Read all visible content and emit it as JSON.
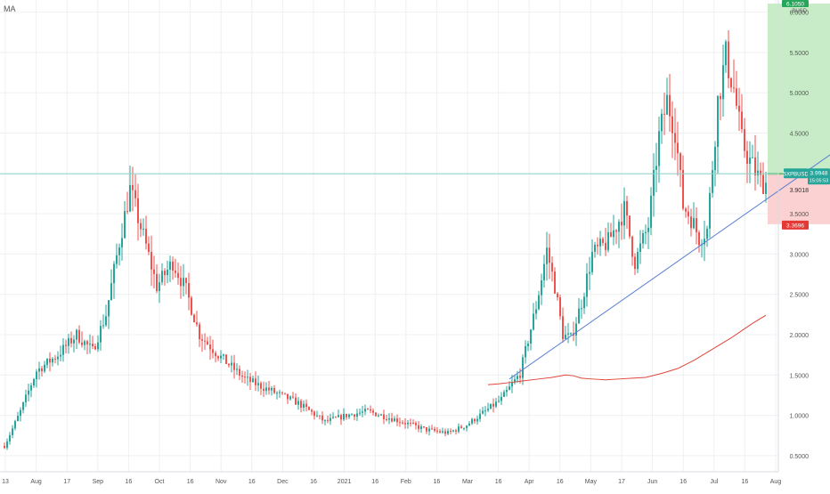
{
  "indicator_label": "MA",
  "chart_data": {
    "type": "candlestick",
    "symbol_label": "SXPBUSD",
    "last_price_label": "3.9948",
    "countdown_label": "15:05:53",
    "line_price_label": "3.9018",
    "stop_label": "3.3696",
    "target_label": "6.1050",
    "currency_label": "BUSD",
    "ylim": [
      0.3,
      6.15
    ],
    "y_ticks": [
      "0.5000",
      "1.0000",
      "1.5000",
      "2.0000",
      "2.5000",
      "3.0000",
      "3.5000",
      "4.0000",
      "4.5000",
      "5.0000",
      "5.5000",
      "6.0000"
    ],
    "x_ticks": [
      "13",
      "Aug",
      "17",
      "Sep",
      "16",
      "Oct",
      "16",
      "Nov",
      "16",
      "Dec",
      "16",
      "2021",
      "16",
      "Feb",
      "16",
      "Mar",
      "16",
      "Apr",
      "16",
      "May",
      "17",
      "Jun",
      "16",
      "Jul",
      "16",
      "Aug"
    ],
    "candle_count": 297,
    "price_path": [
      [
        0,
        0.62
      ],
      [
        6,
        1.05
      ],
      [
        12,
        1.55
      ],
      [
        20,
        1.75
      ],
      [
        27,
        2.0
      ],
      [
        33,
        1.8
      ],
      [
        38,
        2.25
      ],
      [
        43,
        3.15
      ],
      [
        47,
        3.8
      ],
      [
        53,
        3.1
      ],
      [
        57,
        2.6
      ],
      [
        63,
        2.9
      ],
      [
        68,
        2.55
      ],
      [
        73,
        2.0
      ],
      [
        80,
        1.75
      ],
      [
        90,
        1.45
      ],
      [
        100,
        1.3
      ],
      [
        110,
        1.15
      ],
      [
        120,
        0.92
      ],
      [
        128,
        1.0
      ],
      [
        136,
        1.05
      ],
      [
        146,
        0.95
      ],
      [
        158,
        0.82
      ],
      [
        166,
        0.78
      ],
      [
        173,
        0.88
      ],
      [
        180,
        1.05
      ],
      [
        186,
        1.2
      ],
      [
        193,
        1.52
      ],
      [
        199,
        2.35
      ],
      [
        203,
        3.05
      ],
      [
        206,
        2.6
      ],
      [
        209,
        2.0
      ],
      [
        212,
        1.95
      ],
      [
        216,
        2.4
      ],
      [
        220,
        3.0
      ],
      [
        226,
        3.15
      ],
      [
        232,
        3.55
      ],
      [
        236,
        2.9
      ],
      [
        241,
        3.35
      ],
      [
        245,
        4.45
      ],
      [
        248,
        4.9
      ],
      [
        251,
        4.55
      ],
      [
        254,
        3.6
      ],
      [
        257,
        3.45
      ],
      [
        260,
        3.2
      ],
      [
        263,
        3.3
      ],
      [
        267,
        4.9
      ],
      [
        270,
        5.45
      ],
      [
        273,
        5.05
      ],
      [
        276,
        4.4
      ],
      [
        279,
        4.15
      ],
      [
        283,
        3.9
      ],
      [
        285,
        3.88
      ]
    ],
    "moving_average": {
      "name": "MA",
      "color": "#e0463b",
      "x": [
        181,
        185,
        190,
        195,
        200,
        205,
        210,
        213,
        216,
        220,
        225,
        230,
        235,
        240,
        246,
        252,
        258,
        263,
        268,
        272,
        276,
        280,
        285
      ],
      "y": [
        1.38,
        1.39,
        1.41,
        1.43,
        1.45,
        1.47,
        1.5,
        1.49,
        1.46,
        1.45,
        1.44,
        1.45,
        1.46,
        1.47,
        1.52,
        1.58,
        1.68,
        1.78,
        1.88,
        1.96,
        2.05,
        2.14,
        2.24
      ]
    },
    "trendline": {
      "color": "#5b7fd6",
      "points": [
        [
          189,
          1.45
        ],
        [
          325,
          4.6
        ]
      ]
    },
    "horizontal_line": {
      "price": 3.9948,
      "color": "#8fd3c8"
    },
    "position": {
      "entry": 3.9948,
      "stop": 3.3696,
      "target": 6.105,
      "x_start": 285,
      "x_end": 339,
      "profit_color": "#c8ecc8",
      "loss_color": "#fbd1d1"
    },
    "up_color": "#26a69a",
    "down_color": "#ef5350",
    "grid": true
  }
}
